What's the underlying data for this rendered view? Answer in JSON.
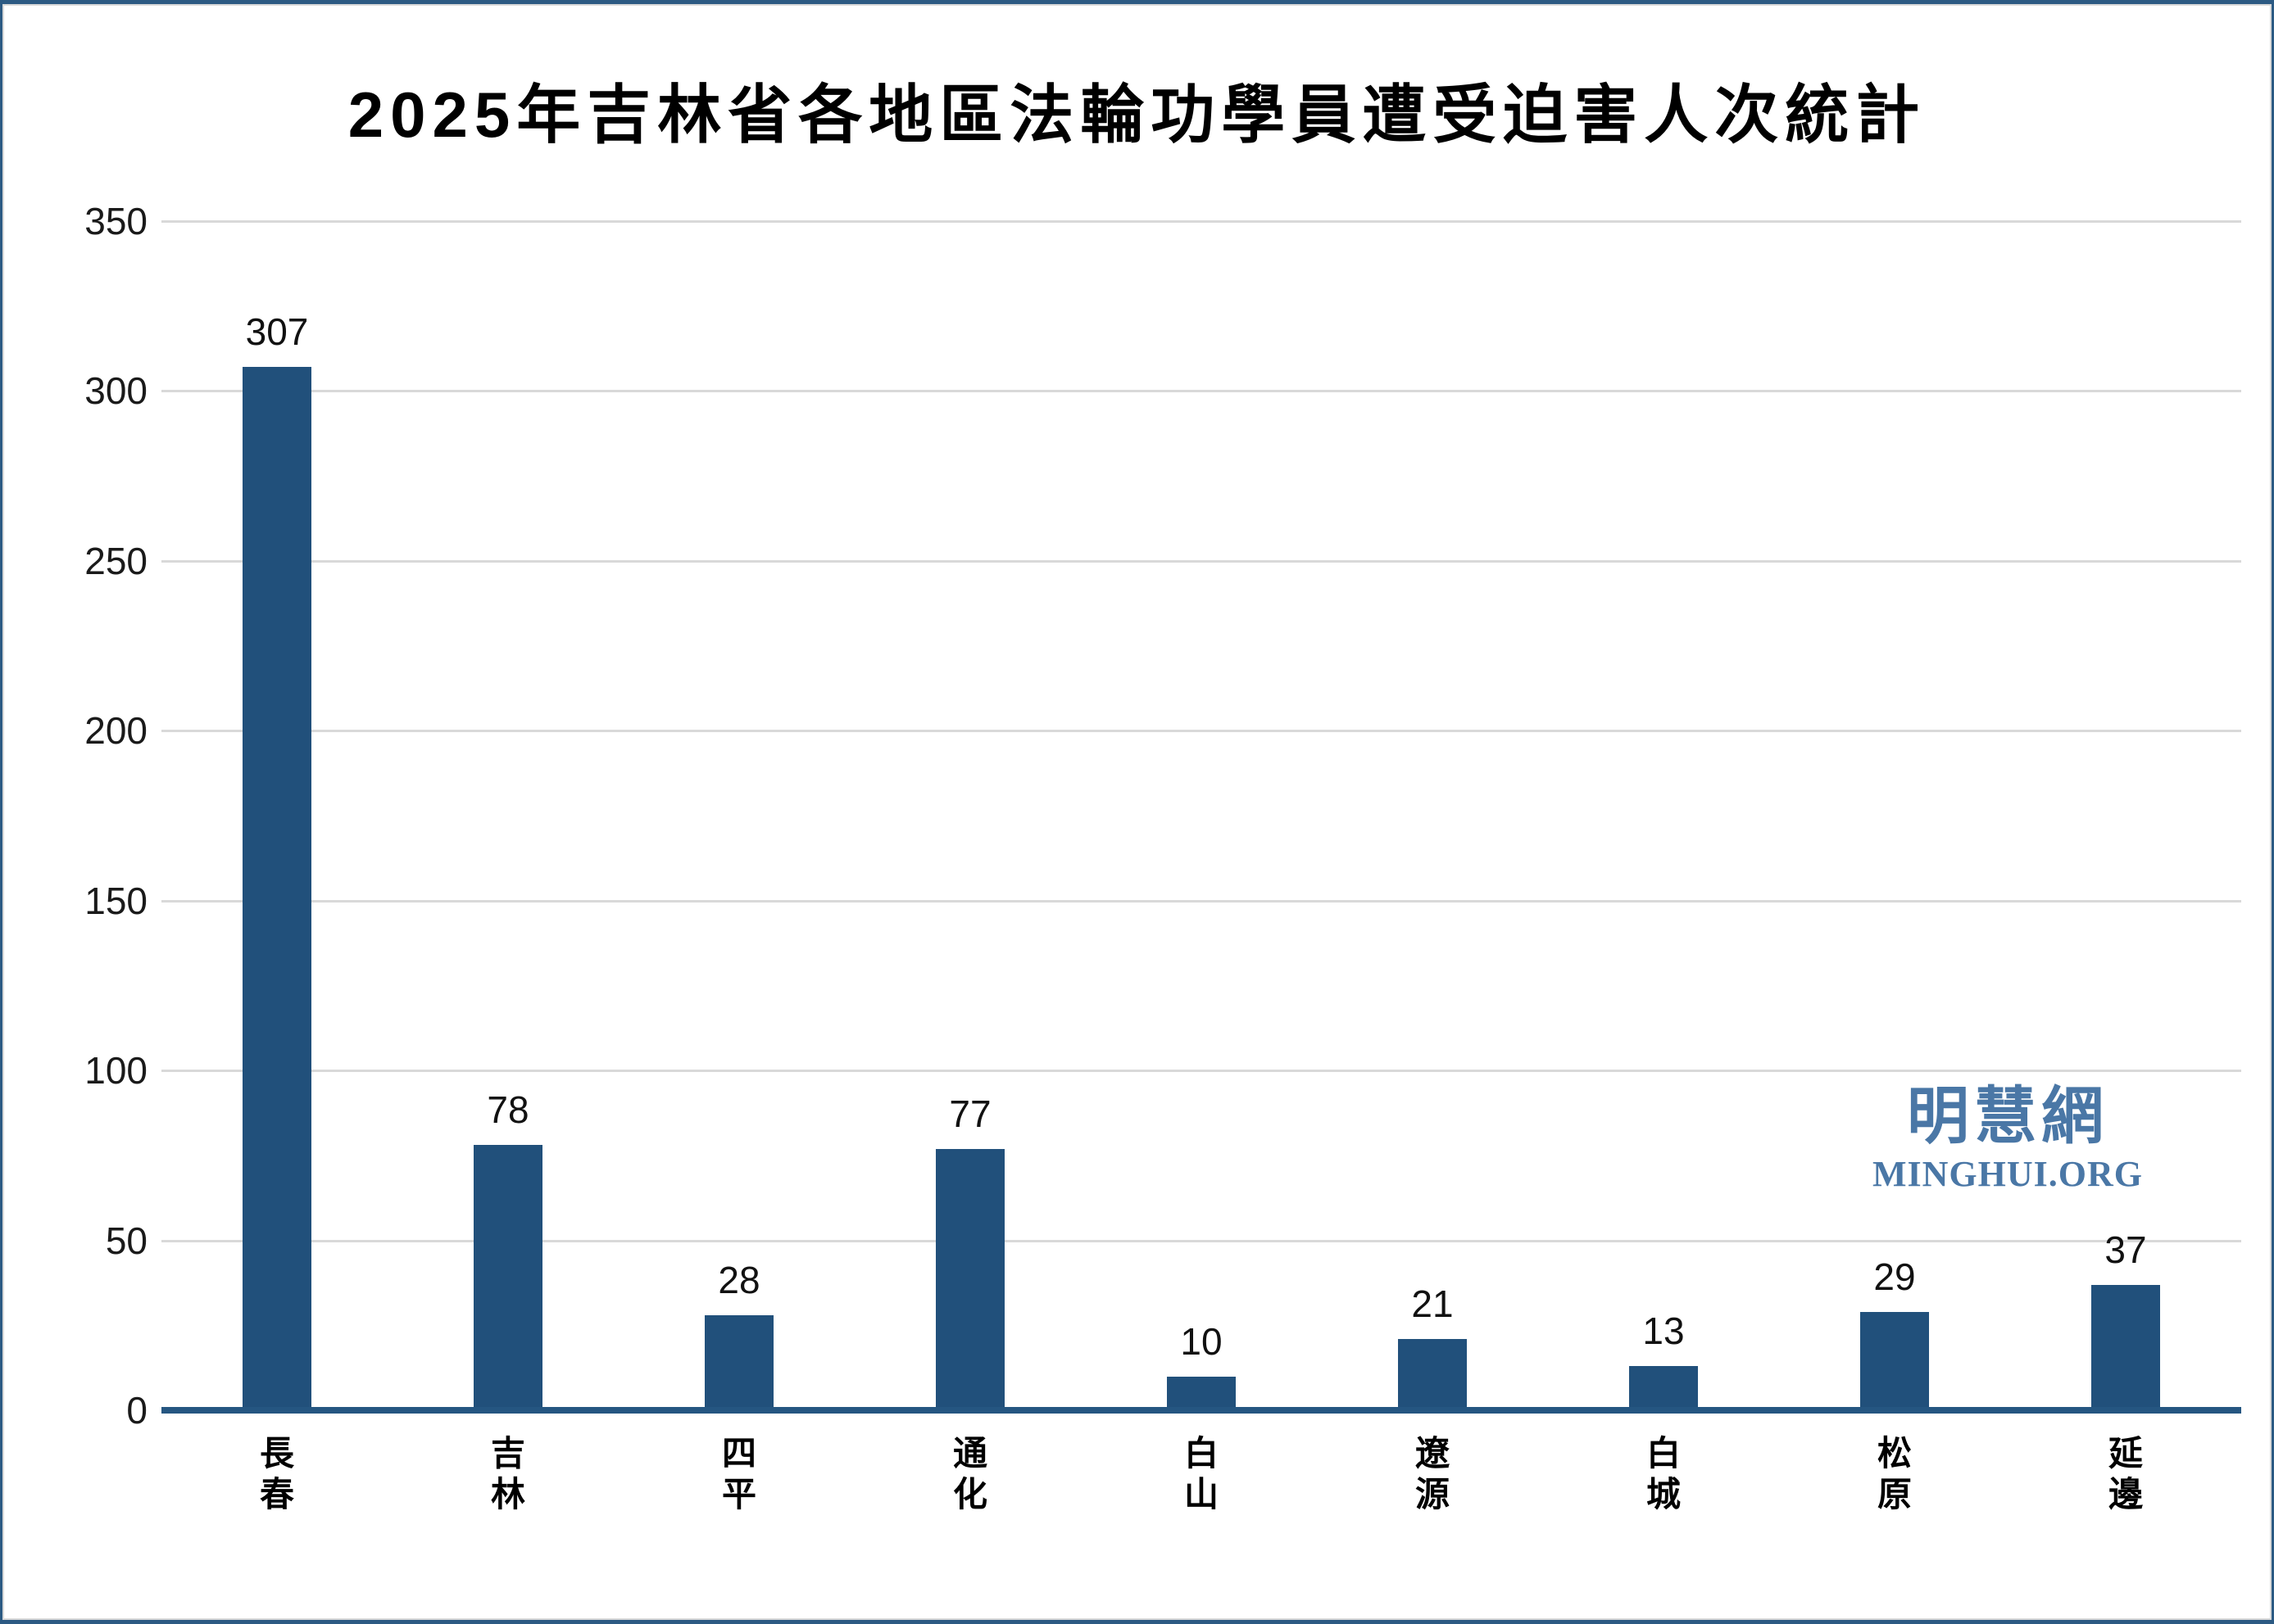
{
  "title": "2025年吉林省各地區法輪功學員遭受迫害人次統計",
  "watermark": {
    "cjk": "明慧網",
    "latin": "MINGHUI.ORG",
    "color": "#4A77A6"
  },
  "colors": {
    "bar": "#21507B",
    "axis": "#255681",
    "gridline": "#D9D9D9",
    "frame": "#2C5A83",
    "label_text": "#111111"
  },
  "chart_data": {
    "type": "bar",
    "title": "2025年吉林省各地區法輪功學員遭受迫害人次統計",
    "categories": [
      "長春",
      "吉林",
      "四平",
      "通化",
      "白山",
      "遼源",
      "白城",
      "松原",
      "延邊"
    ],
    "values": [
      307,
      78,
      28,
      77,
      10,
      21,
      13,
      29,
      37
    ],
    "xlabel": "",
    "ylabel": "",
    "ylim": [
      0,
      350
    ],
    "ytick_step": 50,
    "ytick_labels": [
      "0",
      "50",
      "100",
      "150",
      "200",
      "250",
      "300",
      "350"
    ],
    "grid": true,
    "legend": "none",
    "data_labels": true
  }
}
